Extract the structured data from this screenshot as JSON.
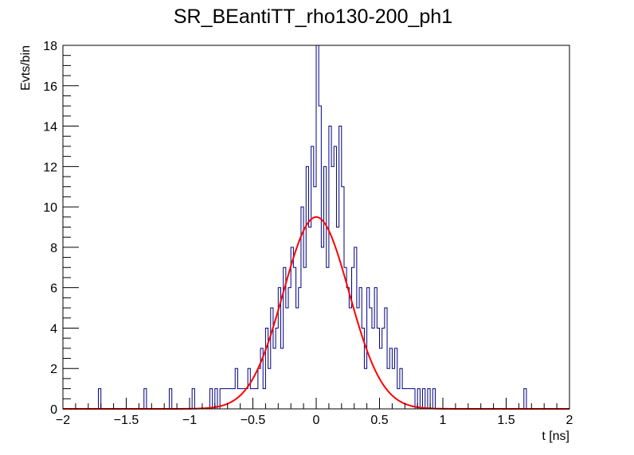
{
  "chart_data": {
    "type": "bar",
    "title": "SR_BEantiTT_rho130-200_ph1",
    "xlabel": "t [ns]",
    "ylabel": "Evts/bin",
    "xlim": [
      -2,
      2
    ],
    "ylim": [
      0,
      18
    ],
    "x_ticks": [
      "−2",
      "−1.5",
      "−1",
      "−0.5",
      "0",
      "0.5",
      "1",
      "1.5",
      "2"
    ],
    "y_ticks": [
      "0",
      "2",
      "4",
      "6",
      "8",
      "10",
      "12",
      "14",
      "16",
      "18"
    ],
    "grid": false,
    "series": [
      {
        "kind": "histogram",
        "color": "#000080",
        "bin_width": 0.02,
        "bins": [
          [
            -1.72,
            1
          ],
          [
            -1.36,
            1
          ],
          [
            -1.16,
            1
          ],
          [
            -0.98,
            1
          ],
          [
            -0.84,
            1
          ],
          [
            -0.8,
            1
          ],
          [
            -0.76,
            1
          ],
          [
            -0.74,
            1
          ],
          [
            -0.72,
            1
          ],
          [
            -0.7,
            1
          ],
          [
            -0.68,
            1
          ],
          [
            -0.66,
            1
          ],
          [
            -0.64,
            2
          ],
          [
            -0.62,
            1
          ],
          [
            -0.6,
            1
          ],
          [
            -0.58,
            1
          ],
          [
            -0.56,
            1
          ],
          [
            -0.54,
            2
          ],
          [
            -0.52,
            1
          ],
          [
            -0.5,
            1
          ],
          [
            -0.48,
            1
          ],
          [
            -0.46,
            2
          ],
          [
            -0.44,
            3
          ],
          [
            -0.42,
            1
          ],
          [
            -0.4,
            4
          ],
          [
            -0.38,
            2
          ],
          [
            -0.36,
            5
          ],
          [
            -0.34,
            3
          ],
          [
            -0.32,
            4
          ],
          [
            -0.3,
            6
          ],
          [
            -0.28,
            3
          ],
          [
            -0.26,
            7
          ],
          [
            -0.24,
            5
          ],
          [
            -0.22,
            6
          ],
          [
            -0.2,
            8
          ],
          [
            -0.18,
            7
          ],
          [
            -0.16,
            5
          ],
          [
            -0.14,
            6
          ],
          [
            -0.12,
            10
          ],
          [
            -0.1,
            7
          ],
          [
            -0.08,
            12
          ],
          [
            -0.06,
            9
          ],
          [
            -0.04,
            13
          ],
          [
            -0.02,
            11
          ],
          [
            0.0,
            18
          ],
          [
            0.02,
            15
          ],
          [
            0.04,
            8
          ],
          [
            0.06,
            12
          ],
          [
            0.08,
            7
          ],
          [
            0.1,
            14
          ],
          [
            0.12,
            12
          ],
          [
            0.14,
            13
          ],
          [
            0.16,
            9
          ],
          [
            0.18,
            14
          ],
          [
            0.2,
            11
          ],
          [
            0.22,
            7
          ],
          [
            0.24,
            6
          ],
          [
            0.26,
            5
          ],
          [
            0.28,
            7
          ],
          [
            0.3,
            8
          ],
          [
            0.32,
            5
          ],
          [
            0.34,
            6
          ],
          [
            0.36,
            4
          ],
          [
            0.38,
            2
          ],
          [
            0.4,
            6
          ],
          [
            0.42,
            5
          ],
          [
            0.44,
            4
          ],
          [
            0.46,
            6
          ],
          [
            0.48,
            4
          ],
          [
            0.5,
            3
          ],
          [
            0.52,
            4
          ],
          [
            0.54,
            5
          ],
          [
            0.56,
            2
          ],
          [
            0.58,
            3
          ],
          [
            0.6,
            2
          ],
          [
            0.62,
            3
          ],
          [
            0.64,
            1
          ],
          [
            0.66,
            2
          ],
          [
            0.68,
            1
          ],
          [
            0.7,
            1
          ],
          [
            0.72,
            1
          ],
          [
            0.74,
            1
          ],
          [
            0.76,
            1
          ],
          [
            0.8,
            1
          ],
          [
            0.84,
            1
          ],
          [
            0.88,
            1
          ],
          [
            0.92,
            1
          ],
          [
            1.64,
            1
          ]
        ]
      },
      {
        "kind": "fit",
        "shape": "gaussian",
        "color": "#ff0000",
        "amplitude": 9.5,
        "mean": 0.0,
        "sigma": 0.26
      }
    ]
  }
}
